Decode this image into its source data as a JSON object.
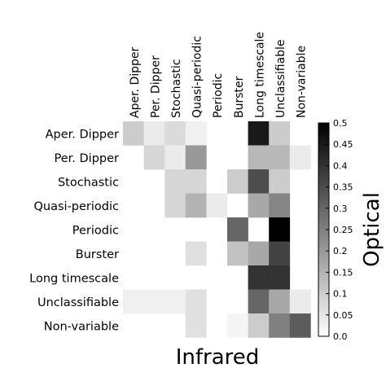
{
  "chart_data": {
    "type": "heatmap",
    "xlabel": "Infrared",
    "colorbar_label": "Optical",
    "colormap": {
      "low": "#ffffff",
      "high": "#000000"
    },
    "rows": [
      "Aper. Dipper",
      "Per. Dipper",
      "Stochastic",
      "Quasi-periodic",
      "Periodic",
      "Burster",
      "Long timescale",
      "Unclassifiable",
      "Non-variable"
    ],
    "columns": [
      "Aper. Dipper",
      "Per. Dipper",
      "Stochastic",
      "Quasi-periodic",
      "Periodic",
      "Burster",
      "Long timescale",
      "Unclassifiable",
      "Non-variable"
    ],
    "values": [
      [
        0.1,
        0.04,
        0.07,
        0.03,
        0.0,
        0.0,
        0.45,
        0.1,
        0.0
      ],
      [
        0.0,
        0.08,
        0.04,
        0.2,
        0.0,
        0.0,
        0.14,
        0.14,
        0.04
      ],
      [
        0.0,
        0.0,
        0.08,
        0.08,
        0.0,
        0.1,
        0.35,
        0.1,
        0.0
      ],
      [
        0.0,
        0.0,
        0.08,
        0.15,
        0.04,
        0.0,
        0.17,
        0.24,
        0.0
      ],
      [
        0.0,
        0.0,
        0.0,
        0.0,
        0.0,
        0.3,
        0.0,
        0.5,
        0.0
      ],
      [
        0.0,
        0.0,
        0.0,
        0.06,
        0.0,
        0.12,
        0.17,
        0.37,
        0.0
      ],
      [
        0.0,
        0.0,
        0.0,
        0.0,
        0.0,
        0.0,
        0.4,
        0.4,
        0.0
      ],
      [
        0.03,
        0.03,
        0.03,
        0.06,
        0.0,
        0.0,
        0.3,
        0.17,
        0.04
      ],
      [
        0.0,
        0.0,
        0.0,
        0.06,
        0.0,
        0.02,
        0.1,
        0.25,
        0.32
      ]
    ],
    "colorbar_range": [
      0.0,
      0.5
    ],
    "colorbar_ticks": [
      "0.0",
      "0.05",
      "0.1",
      "0.15",
      "0.2",
      "0.25",
      "0.3",
      "0.35",
      "0.4",
      "0.45",
      "0.5"
    ]
  }
}
